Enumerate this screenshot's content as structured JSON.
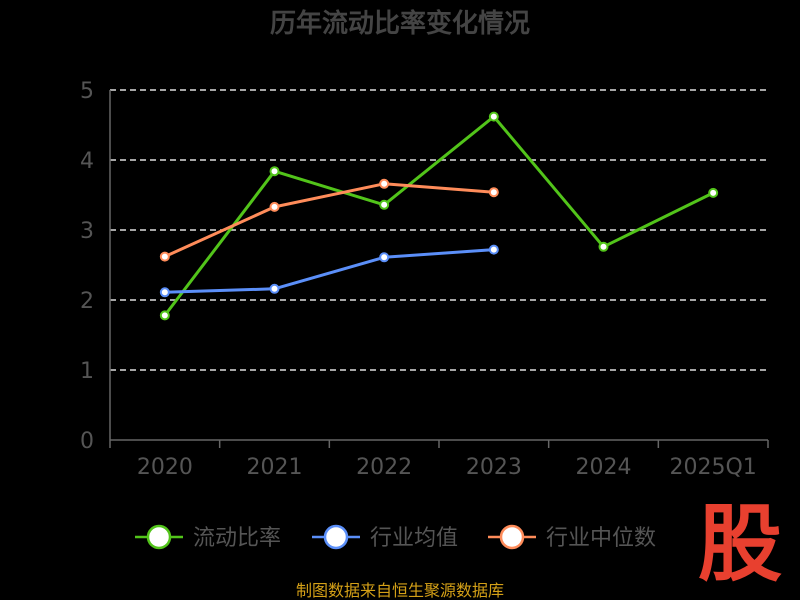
{
  "chart_data": {
    "type": "line",
    "title": "历年流动比率变化情况",
    "categories": [
      "2020",
      "2021",
      "2022",
      "2023",
      "2024",
      "2025Q1"
    ],
    "series": [
      {
        "name": "流动比率",
        "color": "#52c41a",
        "values": [
          1.78,
          3.84,
          3.36,
          4.62,
          2.76,
          3.53
        ]
      },
      {
        "name": "行业均值",
        "color": "#5b8ff9",
        "values": [
          2.11,
          2.16,
          2.61,
          2.72,
          null,
          null
        ]
      },
      {
        "name": "行业中位数",
        "color": "#ff8c5a",
        "values": [
          2.62,
          3.33,
          3.66,
          3.54,
          null,
          null
        ]
      }
    ],
    "ylim": [
      0,
      5
    ],
    "yticks": [
      0,
      1,
      2,
      3,
      4,
      5
    ],
    "grid": true,
    "legend_position": "bottom"
  },
  "watermark": "股",
  "source": "制图数据来自恒生聚源数据库"
}
